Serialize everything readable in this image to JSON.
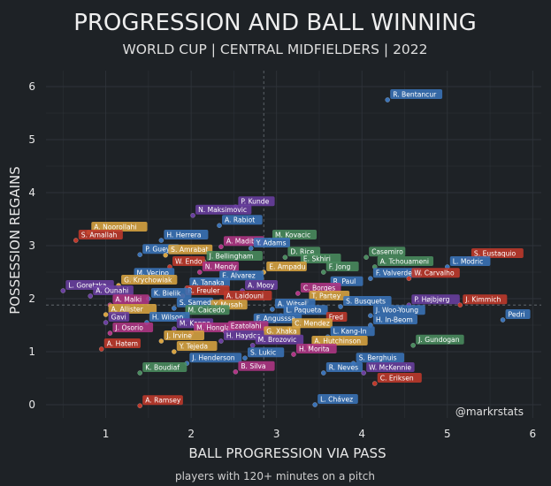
{
  "chart_data": {
    "type": "scatter",
    "title": "PROGRESSION AND BALL WINNING",
    "subtitle": "WORLD CUP | CENTRAL MIDFIELDERS | 2022",
    "xlabel": "BALL PROGRESSION VIA PASS",
    "ylabel": "POSSESSION REGAINS",
    "footer": "players with 120+ minutes on a pitch",
    "watermark": "@markrstats",
    "xlim": [
      0.3,
      6.1
    ],
    "ylim": [
      -0.25,
      6.3
    ],
    "xticks": [
      "1",
      "2",
      "3",
      "4",
      "5",
      "6"
    ],
    "yticks": [
      "0",
      "1",
      "2",
      "3",
      "4",
      "5",
      "6"
    ],
    "grid": true,
    "reference_lines": {
      "x": 2.85,
      "y": 1.88
    },
    "colors": {
      "background": "#1e2226",
      "text": "#e8e8e8",
      "grid": "#2e3339",
      "orange": "#d9a441",
      "red": "#c0392b",
      "blue": "#3a73b8",
      "purple": "#6a3fa0",
      "magenta": "#b03585",
      "green": "#4a8c5f",
      "teal": "#3b7e82"
    },
    "points": [
      {
        "name": "R. Bentancur",
        "x": 4.3,
        "y": 5.75,
        "color": "blue"
      },
      {
        "name": "P. Kunde",
        "x": 2.52,
        "y": 3.73,
        "color": "purple"
      },
      {
        "name": "N. Maksimovic",
        "x": 2.02,
        "y": 3.57,
        "color": "purple"
      },
      {
        "name": "A. Rabiot",
        "x": 2.33,
        "y": 3.38,
        "color": "blue"
      },
      {
        "name": "A. Noorollahi",
        "x": 0.8,
        "y": 3.25,
        "color": "orange"
      },
      {
        "name": "H. Herrera",
        "x": 1.65,
        "y": 3.1,
        "color": "blue"
      },
      {
        "name": "M. Kovacic",
        "x": 2.92,
        "y": 3.1,
        "color": "green"
      },
      {
        "name": "S. Amallah",
        "x": 0.65,
        "y": 3.1,
        "color": "red"
      },
      {
        "name": "A. Madibo",
        "x": 2.35,
        "y": 2.98,
        "color": "magenta"
      },
      {
        "name": "Y. Adams",
        "x": 2.7,
        "y": 2.95,
        "color": "blue"
      },
      {
        "name": "P. Gueye",
        "x": 1.4,
        "y": 2.83,
        "color": "blue"
      },
      {
        "name": "S. Amrabat",
        "x": 1.7,
        "y": 2.82,
        "color": "orange"
      },
      {
        "name": "D. Rice",
        "x": 3.1,
        "y": 2.78,
        "color": "green"
      },
      {
        "name": "Casemiro",
        "x": 4.05,
        "y": 2.78,
        "color": "green"
      },
      {
        "name": "S. Eustaquio",
        "x": 5.25,
        "y": 2.75,
        "color": "red"
      },
      {
        "name": "J. Bellingham",
        "x": 2.15,
        "y": 2.7,
        "color": "green"
      },
      {
        "name": "E. Skhiri",
        "x": 3.25,
        "y": 2.65,
        "color": "green"
      },
      {
        "name": "W. Endo",
        "x": 1.75,
        "y": 2.6,
        "color": "red"
      },
      {
        "name": "A. Tchouameni",
        "x": 4.15,
        "y": 2.6,
        "color": "green"
      },
      {
        "name": "L. Modric",
        "x": 5.0,
        "y": 2.6,
        "color": "blue"
      },
      {
        "name": "N. Mendy",
        "x": 2.1,
        "y": 2.5,
        "color": "magenta"
      },
      {
        "name": "E. Ampadu",
        "x": 2.85,
        "y": 2.5,
        "color": "orange"
      },
      {
        "name": "F. Jong",
        "x": 3.55,
        "y": 2.5,
        "color": "green"
      },
      {
        "name": "F. Valverde",
        "x": 4.1,
        "y": 2.38,
        "color": "blue"
      },
      {
        "name": "W. Carvalho",
        "x": 4.55,
        "y": 2.38,
        "color": "red"
      },
      {
        "name": "M. Vecino",
        "x": 1.3,
        "y": 2.38,
        "color": "blue"
      },
      {
        "name": "E. Alvarez",
        "x": 2.3,
        "y": 2.33,
        "color": "blue"
      },
      {
        "name": "G. Krychowiak",
        "x": 1.15,
        "y": 2.25,
        "color": "orange"
      },
      {
        "name": "R. Paul",
        "x": 3.6,
        "y": 2.22,
        "color": "blue"
      },
      {
        "name": "A. Tanaka",
        "x": 1.95,
        "y": 2.2,
        "color": "blue"
      },
      {
        "name": "A. Mooy",
        "x": 2.6,
        "y": 2.15,
        "color": "purple"
      },
      {
        "name": "L. Goretzka",
        "x": 0.5,
        "y": 2.15,
        "color": "purple"
      },
      {
        "name": "C. Borges",
        "x": 3.25,
        "y": 2.1,
        "color": "magenta"
      },
      {
        "name": "R. Freuler",
        "x": 1.9,
        "y": 2.05,
        "color": "red"
      },
      {
        "name": "A. Ounahi",
        "x": 0.82,
        "y": 2.05,
        "color": "purple"
      },
      {
        "name": "K. Bielik",
        "x": 1.5,
        "y": 2.0,
        "color": "blue"
      },
      {
        "name": "A. Laidouni",
        "x": 2.35,
        "y": 1.95,
        "color": "red"
      },
      {
        "name": "T. Partey",
        "x": 3.35,
        "y": 1.95,
        "color": "orange"
      },
      {
        "name": "P. Højbjerg",
        "x": 4.55,
        "y": 1.88,
        "color": "purple"
      },
      {
        "name": "J. Kimmich",
        "x": 5.15,
        "y": 1.88,
        "color": "red"
      },
      {
        "name": "A. Malki",
        "x": 1.05,
        "y": 1.88,
        "color": "magenta"
      },
      {
        "name": "S. Busquets",
        "x": 3.75,
        "y": 1.85,
        "color": "blue"
      },
      {
        "name": "S. Samed",
        "x": 1.8,
        "y": 1.82,
        "color": "blue"
      },
      {
        "name": "A. Witsel",
        "x": 2.95,
        "y": 1.8,
        "color": "blue"
      },
      {
        "name": "Y. Musah",
        "x": 2.2,
        "y": 1.78,
        "color": "orange"
      },
      {
        "name": "A. Allister",
        "x": 1.0,
        "y": 1.7,
        "color": "orange"
      },
      {
        "name": "M. Caicedo",
        "x": 1.9,
        "y": 1.68,
        "color": "green"
      },
      {
        "name": "L. Paqueta",
        "x": 3.05,
        "y": 1.68,
        "color": "blue"
      },
      {
        "name": "J. Woo-Young",
        "x": 4.1,
        "y": 1.68,
        "color": "blue"
      },
      {
        "name": "Pedri",
        "x": 5.65,
        "y": 1.6,
        "color": "blue"
      },
      {
        "name": "Gavi",
        "x": 1.0,
        "y": 1.55,
        "color": "purple"
      },
      {
        "name": "H. Wilson",
        "x": 1.48,
        "y": 1.55,
        "color": "blue"
      },
      {
        "name": "F. Angusssa",
        "x": 2.7,
        "y": 1.52,
        "color": "blue"
      },
      {
        "name": "Fred",
        "x": 3.55,
        "y": 1.55,
        "color": "red"
      },
      {
        "name": "H. In-Beom",
        "x": 4.1,
        "y": 1.5,
        "color": "blue"
      },
      {
        "name": "M. Kanno",
        "x": 1.8,
        "y": 1.43,
        "color": "purple"
      },
      {
        "name": "J. Osorio",
        "x": 1.05,
        "y": 1.35,
        "color": "magenta"
      },
      {
        "name": "M. Hongla",
        "x": 2.0,
        "y": 1.35,
        "color": "magenta"
      },
      {
        "name": "Ezatolahi",
        "x": 2.4,
        "y": 1.38,
        "color": "magenta"
      },
      {
        "name": "C. Mendez",
        "x": 3.15,
        "y": 1.43,
        "color": "orange"
      },
      {
        "name": "G. Xhaka",
        "x": 2.82,
        "y": 1.28,
        "color": "orange"
      },
      {
        "name": "L. Kang-In",
        "x": 3.6,
        "y": 1.28,
        "color": "blue"
      },
      {
        "name": "J. Irvine",
        "x": 1.65,
        "y": 1.2,
        "color": "orange"
      },
      {
        "name": "H. Haydos",
        "x": 2.35,
        "y": 1.2,
        "color": "purple"
      },
      {
        "name": "M. Brozovic",
        "x": 2.72,
        "y": 1.12,
        "color": "purple"
      },
      {
        "name": "A. Hutchinson",
        "x": 3.38,
        "y": 1.1,
        "color": "orange"
      },
      {
        "name": "J. Gundogan",
        "x": 4.6,
        "y": 1.12,
        "color": "green"
      },
      {
        "name": "A. Hatem",
        "x": 0.95,
        "y": 1.05,
        "color": "red"
      },
      {
        "name": "Y. Tejeda",
        "x": 1.8,
        "y": 1.0,
        "color": "orange"
      },
      {
        "name": "H. Morita",
        "x": 3.2,
        "y": 0.95,
        "color": "magenta"
      },
      {
        "name": "S. Lukic",
        "x": 2.63,
        "y": 0.88,
        "color": "blue"
      },
      {
        "name": "J. Henderson",
        "x": 1.95,
        "y": 0.78,
        "color": "blue"
      },
      {
        "name": "S. Berghuis",
        "x": 3.9,
        "y": 0.78,
        "color": "blue"
      },
      {
        "name": "B. Silva",
        "x": 2.52,
        "y": 0.62,
        "color": "magenta"
      },
      {
        "name": "K. Boudiaf",
        "x": 1.4,
        "y": 0.6,
        "color": "green"
      },
      {
        "name": "R. Neves",
        "x": 3.55,
        "y": 0.6,
        "color": "blue"
      },
      {
        "name": "W. McKennie",
        "x": 4.02,
        "y": 0.6,
        "color": "purple"
      },
      {
        "name": "C. Eriksen",
        "x": 4.15,
        "y": 0.4,
        "color": "red"
      },
      {
        "name": "L. Chávez",
        "x": 3.45,
        "y": 0.0,
        "color": "blue"
      },
      {
        "name": "A. Ramsey",
        "x": 1.4,
        "y": -0.02,
        "color": "red"
      }
    ]
  }
}
